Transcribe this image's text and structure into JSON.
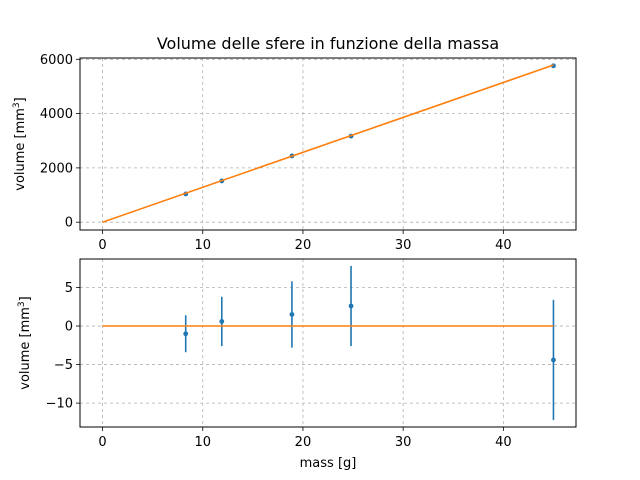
{
  "chart_data": [
    {
      "type": "scatter",
      "title": "Volume delle sfere in funzione della massa",
      "xlabel": "",
      "ylabel": "volume [mm",
      "ylabel_sup": "3",
      "ylabel_end": "]",
      "xlim": [
        -2.25,
        47.25
      ],
      "ylim": [
        -288,
        6048
      ],
      "xticks": [
        0,
        10,
        20,
        30,
        40
      ],
      "yticks": [
        0,
        2000,
        4000,
        6000
      ],
      "grid": true,
      "series": [
        {
          "kind": "points",
          "color": "#1f77b4",
          "x": [
            8.3,
            11.9,
            18.9,
            24.8,
            45.0
          ],
          "y": [
            1040,
            1520,
            2440,
            3170,
            5760
          ]
        },
        {
          "kind": "line",
          "color": "#ff7f0e",
          "x": [
            0,
            45.0
          ],
          "y": [
            0,
            5790
          ]
        }
      ]
    },
    {
      "type": "scatter",
      "title": "",
      "xlabel": "mass [g]",
      "ylabel": "volume [mm",
      "ylabel_sup": "3",
      "ylabel_end": "]",
      "xlim": [
        -2.25,
        47.25
      ],
      "ylim": [
        -13.1,
        8.7
      ],
      "xticks": [
        0,
        10,
        20,
        30,
        40
      ],
      "yticks": [
        -10,
        -5,
        0,
        5
      ],
      "grid": true,
      "series": [
        {
          "kind": "errorbar",
          "color": "#1f77b4",
          "x": [
            8.3,
            11.9,
            18.9,
            24.8,
            45.0
          ],
          "y": [
            -1.0,
            0.6,
            1.5,
            2.6,
            -4.4
          ],
          "yerr": [
            2.4,
            3.2,
            4.3,
            5.2,
            7.8
          ]
        },
        {
          "kind": "line",
          "color": "#ff7f0e",
          "x": [
            0,
            45.0
          ],
          "y": [
            0,
            0
          ]
        }
      ]
    }
  ]
}
